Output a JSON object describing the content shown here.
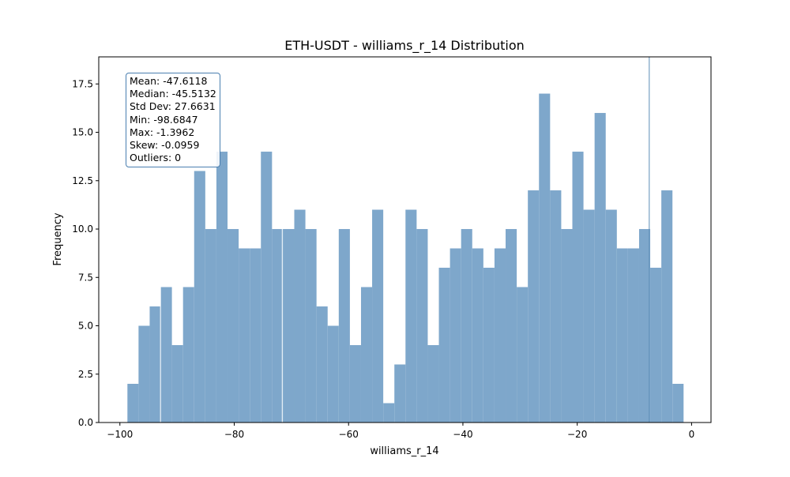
{
  "chart_data": {
    "type": "histogram",
    "title": "ETH-USDT - williams_r_14 Distribution",
    "xlabel": "williams_r_14",
    "ylabel": "Frequency",
    "xlim": [
      -103.7,
      3.4
    ],
    "ylim": [
      0,
      18.9
    ],
    "xticks": [
      -100,
      -80,
      -60,
      -40,
      -20,
      0
    ],
    "xtick_labels": [
      "−100",
      "−80",
      "−60",
      "−40",
      "−20",
      "0"
    ],
    "yticks": [
      0,
      2.5,
      5,
      7.5,
      10,
      12.5,
      15,
      17.5
    ],
    "ytick_labels": [
      "0.0",
      "2.5",
      "5.0",
      "7.5",
      "10.0",
      "12.5",
      "15.0",
      "17.5"
    ],
    "bin_start": -98.6847,
    "bin_end": -1.3962,
    "counts": [
      2,
      5,
      6,
      7,
      4,
      7,
      13,
      10,
      14,
      10,
      9,
      9,
      14,
      10,
      10,
      11,
      10,
      6,
      5,
      10,
      4,
      7,
      11,
      1,
      3,
      11,
      10,
      4,
      8,
      9,
      10,
      9,
      8,
      9,
      10,
      7,
      12,
      17,
      12,
      10,
      14,
      11,
      16,
      11,
      9,
      9,
      10,
      8,
      12,
      2
    ],
    "bar_color": "#7ea7cb",
    "reference_lines": [
      {
        "x": -92.9,
        "color": "#ffffff"
      },
      {
        "x": -71.6,
        "color": "#ffffff"
      },
      {
        "x": -7.4,
        "color": "#5c8db8"
      }
    ],
    "grid": false
  },
  "stats": {
    "mean": "Mean: -47.6118",
    "median": "Median: -45.5132",
    "std": "Std Dev: 27.6631",
    "min": "Min: -98.6847",
    "max": "Max: -1.3962",
    "skew": "Skew: -0.0959",
    "outliers": "Outliers: 0"
  }
}
